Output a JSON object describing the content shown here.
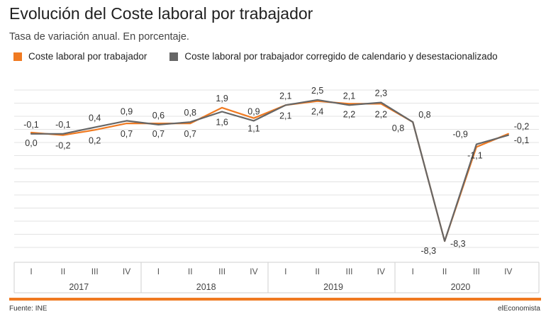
{
  "header": {
    "title": "Evolución del Coste laboral por trabajador",
    "subtitle": "Tasa de variación anual. En porcentaje."
  },
  "footer": {
    "source": "Fuente: INE",
    "brand": "elEconomista"
  },
  "colors": {
    "series_a": "#f07a21",
    "series_b": "#666666",
    "grid": "#e3e3e3",
    "accent": "#f07a21"
  },
  "chart_data": {
    "type": "line",
    "categories": [
      "I",
      "II",
      "III",
      "IV",
      "I",
      "II",
      "III",
      "IV",
      "I",
      "II",
      "III",
      "IV",
      "I",
      "II",
      "III",
      "IV"
    ],
    "years": [
      "2017",
      "2018",
      "2019",
      "2020"
    ],
    "series": [
      {
        "name": "Coste laboral por trabajador",
        "values": [
          0.0,
          -0.2,
          0.2,
          0.7,
          0.7,
          0.7,
          1.9,
          1.1,
          2.1,
          2.4,
          2.2,
          2.2,
          0.8,
          -8.3,
          -1.1,
          -0.1
        ],
        "labels": [
          "0,0",
          "-0,2",
          "0,2",
          "0,7",
          "0,7",
          "0,7",
          "1,9",
          "1,1",
          "2,1",
          "2,4",
          "2,2",
          "2,2",
          "0,8",
          "-8,3",
          "-1,1",
          "-0,1"
        ]
      },
      {
        "name": "Coste laboral por trabajador corregido de calendario y desestacionalizado",
        "values": [
          -0.1,
          -0.1,
          0.4,
          0.9,
          0.6,
          0.8,
          1.6,
          0.9,
          2.1,
          2.5,
          2.1,
          2.3,
          0.8,
          -8.3,
          -0.9,
          -0.2
        ],
        "labels": [
          "-0,1",
          "-0,1",
          "0,4",
          "0,9",
          "0,6",
          "0,8",
          "1,6",
          "0,9",
          "2,1",
          "2,5",
          "2,1",
          "2,3",
          "0,8",
          "-8,3",
          "-0,9",
          "-0,2"
        ]
      }
    ],
    "ylim": [
      -9,
      4.5
    ],
    "grid": true,
    "legend_position": "top-left"
  }
}
